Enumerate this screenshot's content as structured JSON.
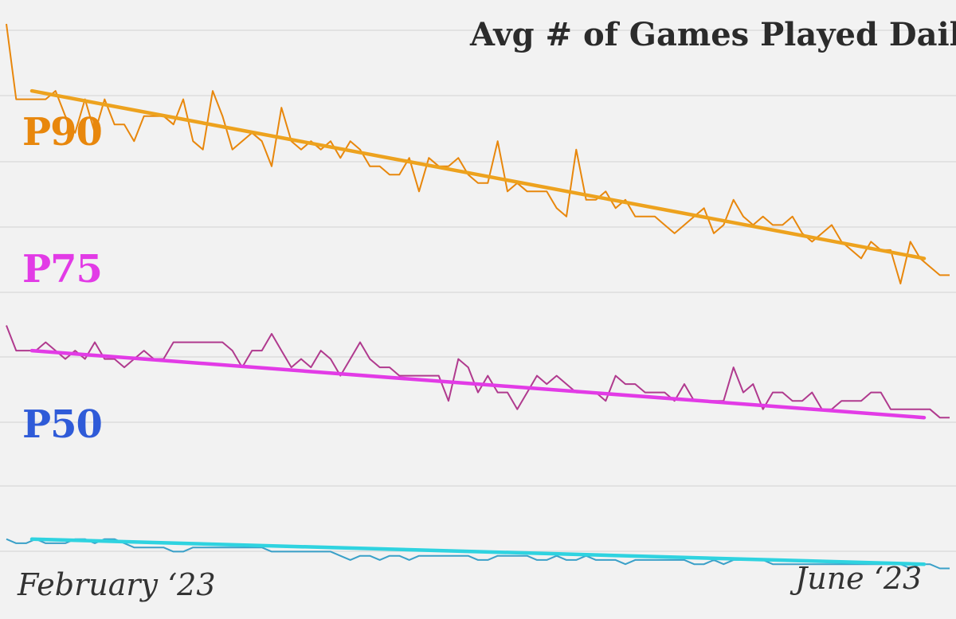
{
  "chart_data": {
    "type": "line",
    "title": "Avg # of Games Played Daily",
    "x_start_label": "February ‘23",
    "x_end_label": "June ‘23",
    "grid": "horizontal",
    "series": [
      {
        "name": "P90",
        "color": "#e8870c",
        "trend_color": "#eda21e",
        "trend": [
          0.92,
          0.72
        ],
        "values": [
          1.0,
          0.91,
          0.91,
          0.91,
          0.91,
          0.92,
          0.89,
          0.87,
          0.91,
          0.87,
          0.91,
          0.88,
          0.88,
          0.86,
          0.89,
          0.89,
          0.89,
          0.88,
          0.91,
          0.86,
          0.85,
          0.92,
          0.89,
          0.85,
          0.86,
          0.87,
          0.86,
          0.83,
          0.9,
          0.86,
          0.85,
          0.86,
          0.85,
          0.86,
          0.84,
          0.86,
          0.85,
          0.83,
          0.83,
          0.82,
          0.82,
          0.84,
          0.8,
          0.84,
          0.83,
          0.83,
          0.84,
          0.82,
          0.81,
          0.81,
          0.86,
          0.8,
          0.81,
          0.8,
          0.8,
          0.8,
          0.78,
          0.77,
          0.85,
          0.79,
          0.79,
          0.8,
          0.78,
          0.79,
          0.77,
          0.77,
          0.77,
          0.76,
          0.75,
          0.76,
          0.77,
          0.78,
          0.75,
          0.76,
          0.79,
          0.77,
          0.76,
          0.77,
          0.76,
          0.76,
          0.77,
          0.75,
          0.74,
          0.75,
          0.76,
          0.74,
          0.73,
          0.72,
          0.74,
          0.73,
          0.73,
          0.69,
          0.74,
          0.72,
          0.71,
          0.7,
          0.7
        ]
      },
      {
        "name": "P75",
        "color": "#b03a8e",
        "trend_color": "#e23be6",
        "trend": [
          0.61,
          0.53
        ],
        "values": [
          0.64,
          0.61,
          0.61,
          0.61,
          0.62,
          0.61,
          0.6,
          0.61,
          0.6,
          0.62,
          0.6,
          0.6,
          0.59,
          0.6,
          0.61,
          0.6,
          0.6,
          0.62,
          0.62,
          0.62,
          0.62,
          0.62,
          0.62,
          0.61,
          0.59,
          0.61,
          0.61,
          0.63,
          0.61,
          0.59,
          0.6,
          0.59,
          0.61,
          0.6,
          0.58,
          0.6,
          0.62,
          0.6,
          0.59,
          0.59,
          0.58,
          0.58,
          0.58,
          0.58,
          0.58,
          0.55,
          0.6,
          0.59,
          0.56,
          0.58,
          0.56,
          0.56,
          0.54,
          0.56,
          0.58,
          0.57,
          0.58,
          0.57,
          0.56,
          0.56,
          0.56,
          0.55,
          0.58,
          0.57,
          0.57,
          0.56,
          0.56,
          0.56,
          0.55,
          0.57,
          0.55,
          0.55,
          0.55,
          0.55,
          0.59,
          0.56,
          0.57,
          0.54,
          0.56,
          0.56,
          0.55,
          0.55,
          0.56,
          0.54,
          0.54,
          0.55,
          0.55,
          0.55,
          0.56,
          0.56,
          0.54,
          0.54,
          0.54,
          0.54,
          0.54,
          0.53,
          0.53
        ]
      },
      {
        "name": "P50",
        "color": "#3aa0c8",
        "trend_color": "#2fd3e0",
        "trend": [
          0.385,
          0.355
        ],
        "values": [
          0.385,
          0.38,
          0.38,
          0.385,
          0.38,
          0.38,
          0.38,
          0.385,
          0.385,
          0.38,
          0.385,
          0.385,
          0.38,
          0.375,
          0.375,
          0.375,
          0.375,
          0.37,
          0.37,
          0.375,
          0.375,
          0.375,
          0.375,
          0.375,
          0.375,
          0.375,
          0.375,
          0.37,
          0.37,
          0.37,
          0.37,
          0.37,
          0.37,
          0.37,
          0.365,
          0.36,
          0.365,
          0.365,
          0.36,
          0.365,
          0.365,
          0.36,
          0.365,
          0.365,
          0.365,
          0.365,
          0.365,
          0.365,
          0.36,
          0.36,
          0.365,
          0.365,
          0.365,
          0.365,
          0.36,
          0.36,
          0.365,
          0.36,
          0.36,
          0.365,
          0.36,
          0.36,
          0.36,
          0.355,
          0.36,
          0.36,
          0.36,
          0.36,
          0.36,
          0.36,
          0.355,
          0.355,
          0.36,
          0.355,
          0.36,
          0.36,
          0.36,
          0.36,
          0.355,
          0.355,
          0.355,
          0.355,
          0.355,
          0.355,
          0.355,
          0.355,
          0.355,
          0.355,
          0.355,
          0.355,
          0.355,
          0.355,
          0.35,
          0.355,
          0.355,
          0.35,
          0.35
        ]
      }
    ]
  }
}
